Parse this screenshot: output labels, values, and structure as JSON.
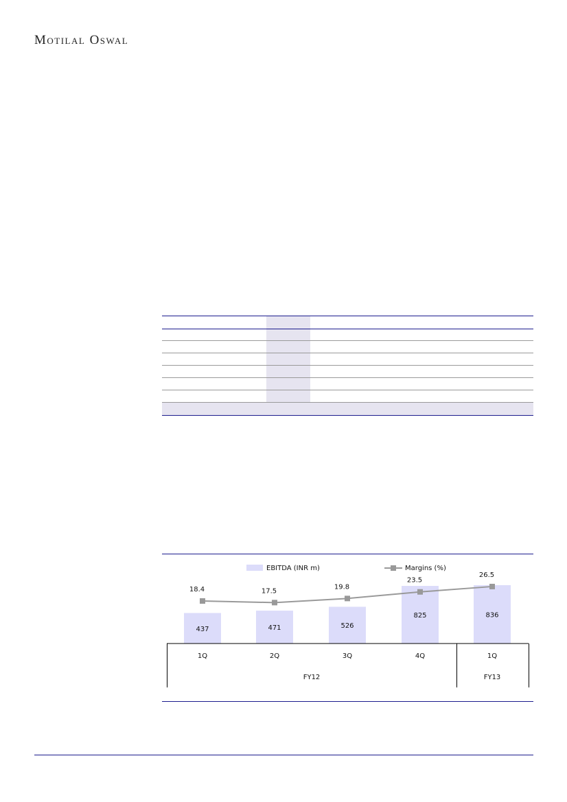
{
  "header": {
    "logo_text": "Motilal Oswal"
  },
  "chart_data": {
    "type": "bar",
    "categories": [
      "1Q",
      "2Q",
      "3Q",
      "4Q",
      "1Q"
    ],
    "category_groups": [
      {
        "label": "FY12",
        "span": 4
      },
      {
        "label": "FY13",
        "span": 1
      }
    ],
    "series": [
      {
        "name": "EBITDA (INR m)",
        "type": "bar",
        "values": [
          437,
          471,
          526,
          825,
          836
        ],
        "color": "#dcdcfa"
      },
      {
        "name": "Margins (%)",
        "type": "line",
        "values": [
          18.4,
          17.5,
          19.8,
          23.5,
          26.5
        ],
        "color": "#999999"
      }
    ],
    "legend": "top",
    "grid": false
  }
}
